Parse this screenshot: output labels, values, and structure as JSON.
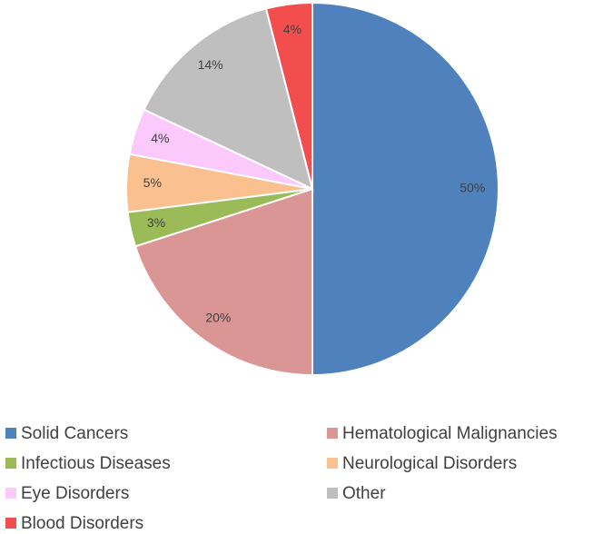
{
  "chart_data": {
    "type": "pie",
    "categories": [
      "Solid Cancers",
      "Hematological Malignancies",
      "Infectious Diseases",
      "Neurological Disorders",
      "Eye Disorders",
      "Other",
      "Blood Disorders"
    ],
    "values": [
      50,
      20,
      3,
      5,
      4,
      14,
      4
    ],
    "value_labels": [
      "50%",
      "20%",
      "3%",
      "5%",
      "4%",
      "14%",
      "4%"
    ],
    "colors": [
      "#4f81bd",
      "#d99694",
      "#9bbb59",
      "#fac090",
      "#fbc9fb",
      "#bfbfbf",
      "#f24e4e"
    ]
  }
}
